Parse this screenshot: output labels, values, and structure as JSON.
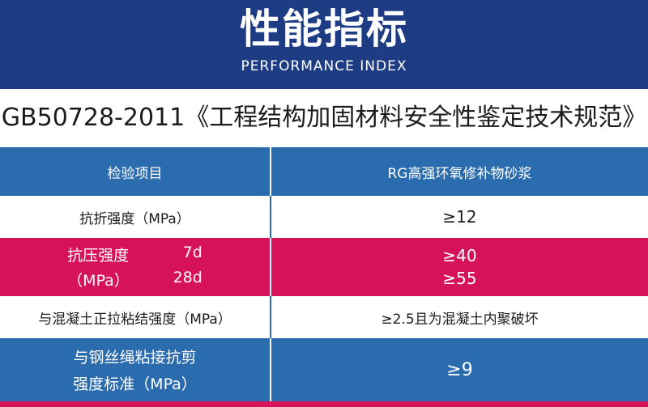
{
  "header": {
    "title": "性能指标",
    "subtitle": "PERFORMANCE INDEX"
  },
  "standard": "GB50728-2011《工程结构加固材料安全性鉴定技术规范》",
  "table": {
    "head": {
      "col1": "检验项目",
      "col2": "RG高强环氧修补物砂浆"
    },
    "rows": [
      {
        "item": "抗折强度（MPa）",
        "value": "≥12"
      },
      {
        "item_line1": "抗压强度",
        "age1": "7d",
        "item_line2": "（MPa）",
        "age2": "28d",
        "value1": "≥40",
        "value2": "≥55"
      },
      {
        "item": "与混凝土正拉粘结强度（MPa）",
        "value": "≥2.5且为混凝土内聚破坏"
      },
      {
        "item_line1": "与钢丝绳粘接抗剪",
        "item_line2": "强度标准（MPa）",
        "value": "≥9"
      }
    ]
  },
  "colors": {
    "header_bg": "#1d3c84",
    "table_blue": "#2a6cae",
    "table_pink": "#d6125b"
  }
}
